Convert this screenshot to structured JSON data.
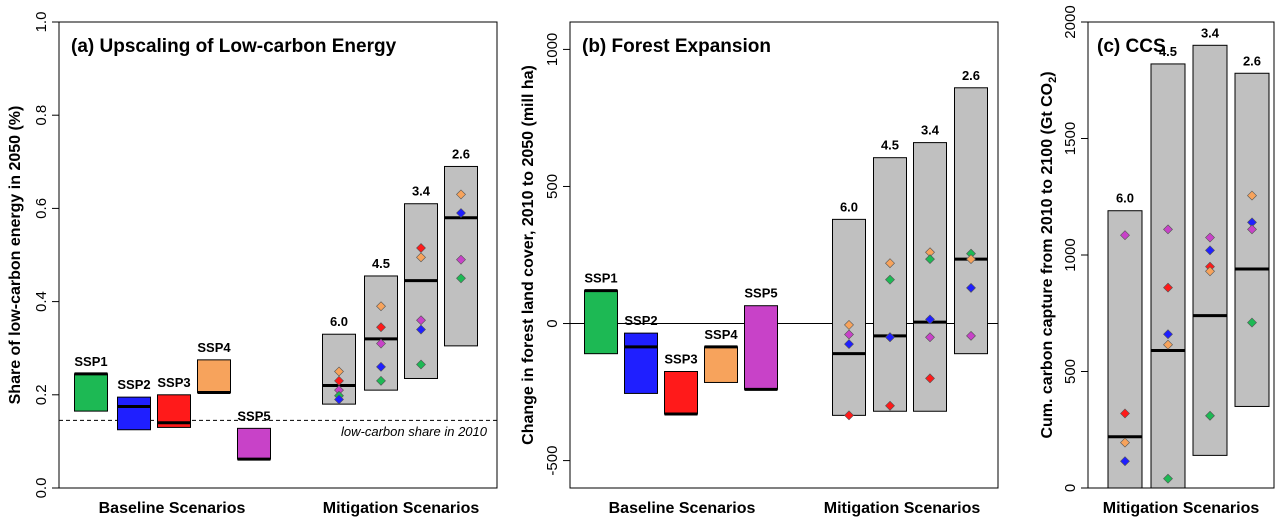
{
  "colors": {
    "SSP1": "#1db954",
    "SSP2": "#1f1fff",
    "SSP3": "#ff1a1a",
    "SSP4": "#f7a35c",
    "SSP5": "#c842c8",
    "mitigation": "#c0c0c0"
  },
  "chart_data": [
    {
      "type": "bar",
      "title": "(a) Upscaling of Low-carbon Energy",
      "ylabel": "Share of low-carbon energy in 2050 (%)",
      "ylim": [
        0,
        1
      ],
      "yticks": [
        "0.0",
        "0.2",
        "0.4",
        "0.6",
        "0.8",
        "1.0"
      ],
      "ytick_values": [
        0,
        0.2,
        0.4,
        0.6,
        0.8,
        1.0
      ],
      "groups": [
        "Baseline Scenarios",
        "Mitigation Scenarios"
      ],
      "reference": {
        "value": 0.145,
        "label": "low-carbon share in 2010"
      },
      "baseline": [
        {
          "name": "SSP1",
          "low": 0.165,
          "high": 0.245,
          "median": 0.245
        },
        {
          "name": "SSP2",
          "low": 0.125,
          "high": 0.195,
          "median": 0.175
        },
        {
          "name": "SSP3",
          "low": 0.13,
          "high": 0.2,
          "median": 0.14
        },
        {
          "name": "SSP4",
          "low": 0.205,
          "high": 0.275,
          "median": 0.205
        },
        {
          "name": "SSP5",
          "low": 0.062,
          "high": 0.128,
          "median": 0.062
        }
      ],
      "mitigation": [
        {
          "name": "6.0",
          "low": 0.18,
          "high": 0.33,
          "median": 0.22,
          "points": {
            "SSP4": 0.25,
            "SSP3": 0.23,
            "SSP5": 0.21,
            "SSP1": 0.198,
            "SSP2": 0.19
          }
        },
        {
          "name": "4.5",
          "low": 0.21,
          "high": 0.455,
          "median": 0.32,
          "points": {
            "SSP4": 0.39,
            "SSP3": 0.345,
            "SSP5": 0.31,
            "SSP2": 0.26,
            "SSP1": 0.23
          }
        },
        {
          "name": "3.4",
          "low": 0.235,
          "high": 0.61,
          "median": 0.445,
          "points": {
            "SSP3": 0.515,
            "SSP4": 0.495,
            "SSP5": 0.36,
            "SSP2": 0.34,
            "SSP1": 0.265
          }
        },
        {
          "name": "2.6",
          "low": 0.305,
          "high": 0.69,
          "median": 0.58,
          "points": {
            "SSP4": 0.63,
            "SSP2": 0.59,
            "SSP5": 0.49,
            "SSP1": 0.45
          }
        }
      ]
    },
    {
      "type": "bar",
      "title": "(b) Forest Expansion",
      "ylabel": "Change in forest land cover, 2010 to 2050 (mill ha)",
      "ylim": [
        -600,
        1100
      ],
      "yticks": [
        "-500",
        "0",
        "500",
        "1000"
      ],
      "ytick_values": [
        -500,
        0,
        500,
        1000
      ],
      "groups": [
        "Baseline Scenarios",
        "Mitigation Scenarios"
      ],
      "reference": {
        "value": 0
      },
      "baseline": [
        {
          "name": "SSP1",
          "low": -110,
          "high": 120,
          "median": 120
        },
        {
          "name": "SSP2",
          "low": -255,
          "high": -35,
          "median": -85
        },
        {
          "name": "SSP3",
          "low": -330,
          "high": -175,
          "median": -330
        },
        {
          "name": "SSP4",
          "low": -215,
          "high": -85,
          "median": -85
        },
        {
          "name": "SSP5",
          "low": -240,
          "high": 65,
          "median": -240
        }
      ],
      "mitigation": [
        {
          "name": "6.0",
          "low": -335,
          "high": 380,
          "median": -110,
          "points": {
            "SSP4": -5,
            "SSP5": -40,
            "SSP2": -75,
            "SSP3": -335
          }
        },
        {
          "name": "4.5",
          "low": -320,
          "high": 605,
          "median": -45,
          "points": {
            "SSP4": 220,
            "SSP1": 160,
            "SSP5": -50,
            "SSP2": -50,
            "SSP3": -300
          }
        },
        {
          "name": "3.4",
          "low": -320,
          "high": 660,
          "median": 5,
          "points": {
            "SSP4": 260,
            "SSP1": 235,
            "SSP2": 15,
            "SSP5": -50,
            "SSP3": -200
          }
        },
        {
          "name": "2.6",
          "low": -110,
          "high": 860,
          "median": 235,
          "points": {
            "SSP1": 255,
            "SSP4": 235,
            "SSP2": 130,
            "SSP5": -45
          }
        }
      ]
    },
    {
      "type": "bar",
      "title": "(c) CCS",
      "ylabel_main": "Cum. carbon capture from 2010 to 2100 (Gt CO",
      "ylabel_sub": "2",
      "ylabel_close": ")",
      "ylim": [
        0,
        2000
      ],
      "yticks": [
        "0",
        "500",
        "1000",
        "1500",
        "2000"
      ],
      "ytick_values": [
        0,
        500,
        1000,
        1500,
        2000
      ],
      "groups": [
        "Mitigation Scenarios"
      ],
      "mitigation": [
        {
          "name": "6.0",
          "low": 0,
          "high": 1190,
          "median": 220,
          "points": {
            "SSP5": 1085,
            "SSP3": 320,
            "SSP4": 195,
            "SSP2": 115
          }
        },
        {
          "name": "4.5",
          "low": 0,
          "high": 1820,
          "median": 590,
          "points": {
            "SSP5": 1110,
            "SSP3": 860,
            "SSP2": 660,
            "SSP4": 615,
            "SSP1": 40
          }
        },
        {
          "name": "3.4",
          "low": 140,
          "high": 1900,
          "median": 740,
          "points": {
            "SSP5": 1075,
            "SSP2": 1020,
            "SSP3": 950,
            "SSP4": 930,
            "SSP1": 310
          }
        },
        {
          "name": "2.6",
          "low": 350,
          "high": 1780,
          "median": 940,
          "points": {
            "SSP4": 1255,
            "SSP2": 1140,
            "SSP5": 1110,
            "SSP1": 710
          }
        }
      ]
    }
  ]
}
